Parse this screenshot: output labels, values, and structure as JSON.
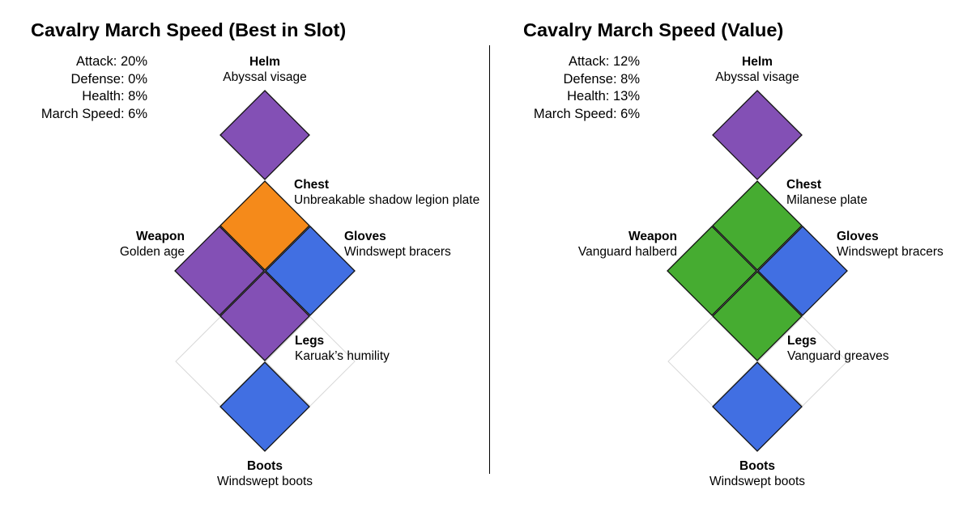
{
  "colors": {
    "purple": "#8350b5",
    "orange": "#f58a1a",
    "blue": "#416fe2",
    "green": "#46ac31"
  },
  "panels": [
    {
      "title": "Cavalry March Speed (Best in Slot)",
      "stats": [
        "Attack: 20%",
        "Defense: 0%",
        "Health: 8%",
        "March Speed: 6%"
      ],
      "slots": {
        "helm": {
          "name": "Helm",
          "item": "Abyssal visage",
          "color": "#8350b5"
        },
        "chest": {
          "name": "Chest",
          "item": "Unbreakable shadow legion plate",
          "color": "#f58a1a"
        },
        "weapon": {
          "name": "Weapon",
          "item": "Golden age",
          "color": "#8350b5"
        },
        "gloves": {
          "name": "Gloves",
          "item": "Windswept bracers",
          "color": "#416fe2"
        },
        "legs": {
          "name": "Legs",
          "item": "Karuak’s humility",
          "color": "#8350b5"
        },
        "boots": {
          "name": "Boots",
          "item": "Windswept boots",
          "color": "#416fe2"
        }
      }
    },
    {
      "title": "Cavalry March Speed (Value)",
      "stats": [
        "Attack: 12%",
        "Defense: 8%",
        "Health: 13%",
        "March Speed: 6%"
      ],
      "slots": {
        "helm": {
          "name": "Helm",
          "item": "Abyssal visage",
          "color": "#8350b5"
        },
        "chest": {
          "name": "Chest",
          "item": "Milanese plate",
          "color": "#46ac31"
        },
        "weapon": {
          "name": "Weapon",
          "item": "Vanguard halberd",
          "color": "#46ac31"
        },
        "gloves": {
          "name": "Gloves",
          "item": "Windswept bracers",
          "color": "#416fe2"
        },
        "legs": {
          "name": "Legs",
          "item": "Vanguard greaves",
          "color": "#46ac31"
        },
        "boots": {
          "name": "Boots",
          "item": "Windswept boots",
          "color": "#416fe2"
        }
      }
    }
  ]
}
